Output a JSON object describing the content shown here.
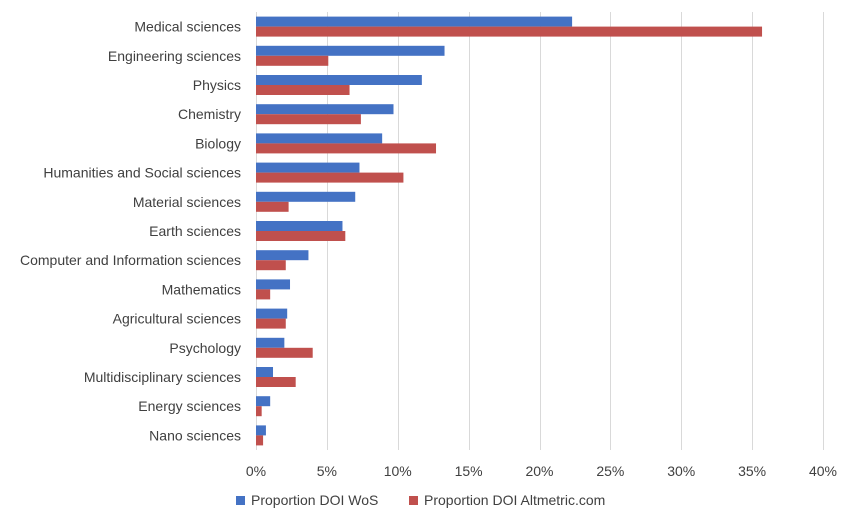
{
  "chart_data": {
    "type": "bar",
    "orientation": "horizontal",
    "categories": [
      "Medical sciences",
      "Engineering sciences",
      "Physics",
      "Chemistry",
      "Biology",
      "Humanities and Social sciences",
      "Material sciences",
      "Earth sciences",
      "Computer and Information sciences",
      "Mathematics",
      "Agricultural sciences",
      "Psychology",
      "Multidisciplinary sciences",
      "Energy sciences",
      "Nano sciences"
    ],
    "series": [
      {
        "name": "Proportion DOI WoS",
        "color": "#4472c4",
        "values": [
          22.3,
          13.3,
          11.7,
          9.7,
          8.9,
          7.3,
          7.0,
          6.1,
          3.7,
          2.4,
          2.2,
          2.0,
          1.2,
          1.0,
          0.7
        ]
      },
      {
        "name": "Proportion DOI Altmetric.com",
        "color": "#c0504d",
        "values": [
          35.7,
          5.1,
          6.6,
          7.4,
          12.7,
          10.4,
          2.3,
          6.3,
          2.1,
          1.0,
          2.1,
          4.0,
          2.8,
          0.4,
          0.5
        ]
      }
    ],
    "xlim": [
      0,
      40
    ],
    "x_ticks": [
      "0%",
      "5%",
      "10%",
      "15%",
      "20%",
      "25%",
      "30%",
      "35%",
      "40%"
    ],
    "x_tick_values": [
      0,
      5,
      10,
      15,
      20,
      25,
      30,
      35,
      40
    ],
    "grid": true,
    "legend_position": "bottom"
  }
}
